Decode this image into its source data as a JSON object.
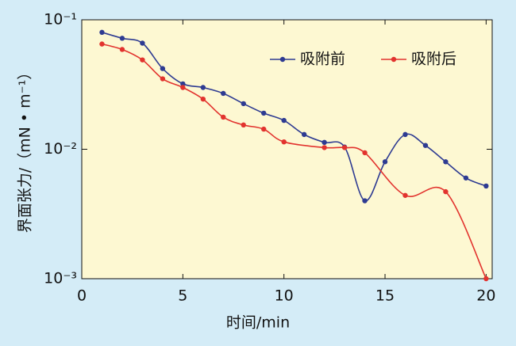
{
  "chart_data": {
    "type": "line",
    "xlabel": "时间/min",
    "ylabel": "界面张力/（mN • m⁻¹）",
    "log_y": true,
    "xlim": [
      0,
      20.3
    ],
    "xticks": [
      0,
      5,
      10,
      15,
      20
    ],
    "ylim": [
      0.001,
      0.1
    ],
    "yticks": [
      {
        "value": 0.001,
        "label": "10⁻³"
      },
      {
        "value": 0.01,
        "label": "10⁻²"
      },
      {
        "value": 0.1,
        "label": "10⁻¹"
      }
    ],
    "legend": "upper right",
    "series": [
      {
        "name": "吸附前",
        "color": "#2e3b92",
        "x": [
          1,
          2,
          3,
          4,
          5,
          6,
          7,
          8,
          9,
          10,
          11,
          12,
          13,
          14,
          15,
          16,
          17,
          18,
          19,
          20
        ],
        "values": [
          0.08,
          0.072,
          0.066,
          0.042,
          0.032,
          0.03,
          0.027,
          0.0225,
          0.019,
          0.0167,
          0.013,
          0.0113,
          0.0104,
          0.004,
          0.008,
          0.013,
          0.0107,
          0.008,
          0.006,
          0.0052
        ]
      },
      {
        "name": "吸附后",
        "color": "#e2332e",
        "x": [
          1,
          2,
          3,
          4,
          5,
          6,
          7,
          8,
          9,
          10,
          12,
          13,
          14,
          16,
          18,
          20
        ],
        "values": [
          0.065,
          0.059,
          0.049,
          0.035,
          0.03,
          0.0244,
          0.0177,
          0.0154,
          0.0143,
          0.0114,
          0.0103,
          0.0103,
          0.0094,
          0.0044,
          0.0047,
          0.001
        ]
      }
    ]
  }
}
